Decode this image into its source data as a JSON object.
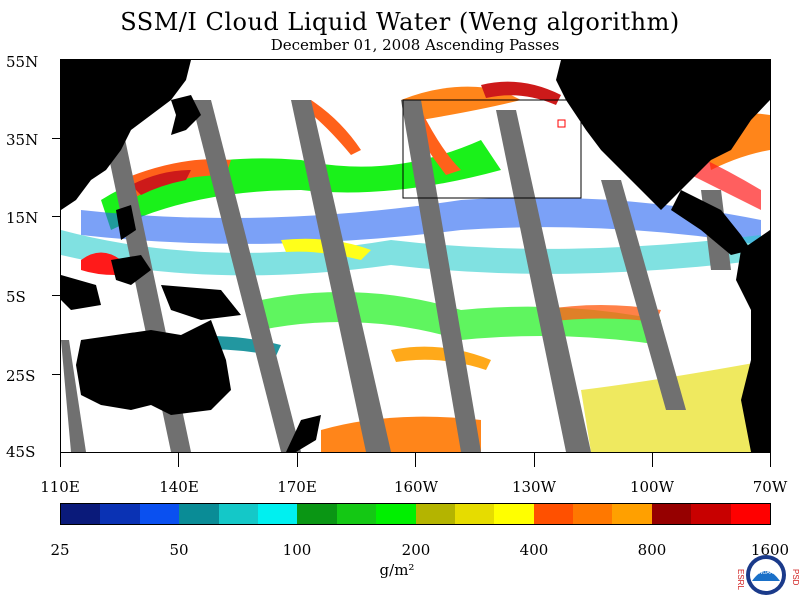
{
  "title": "SSM/I Cloud Liquid Water (Weng algorithm)",
  "subtitle": "December 01, 2008  Ascending Passes",
  "map": {
    "lat_labels": [
      "55N",
      "35N",
      "15N",
      "5S",
      "25S",
      "45S"
    ],
    "lon_labels": [
      "110E",
      "140E",
      "170E",
      "160W",
      "130W",
      "100W",
      "70W"
    ],
    "colors": {
      "land": "#000000",
      "no_data_swath": "#707070",
      "ocean_clear": "#ffffff"
    }
  },
  "colorbar": {
    "labels": [
      "25",
      "50",
      "100",
      "200",
      "400",
      "800",
      "1600"
    ],
    "colors": [
      "#0a1a7a",
      "#0a32b4",
      "#0a50f0",
      "#0a8c96",
      "#14c8c8",
      "#00f0f0",
      "#0a9614",
      "#14c814",
      "#00f000",
      "#b4b400",
      "#e6dc00",
      "#ffff00",
      "#ff5000",
      "#ff7800",
      "#ffa000",
      "#960000",
      "#c80000",
      "#ff0000"
    ],
    "units": "g/m²"
  },
  "logo": {
    "left_text": "ESRL",
    "right_text": "PSD",
    "center_text": "NOAA"
  }
}
